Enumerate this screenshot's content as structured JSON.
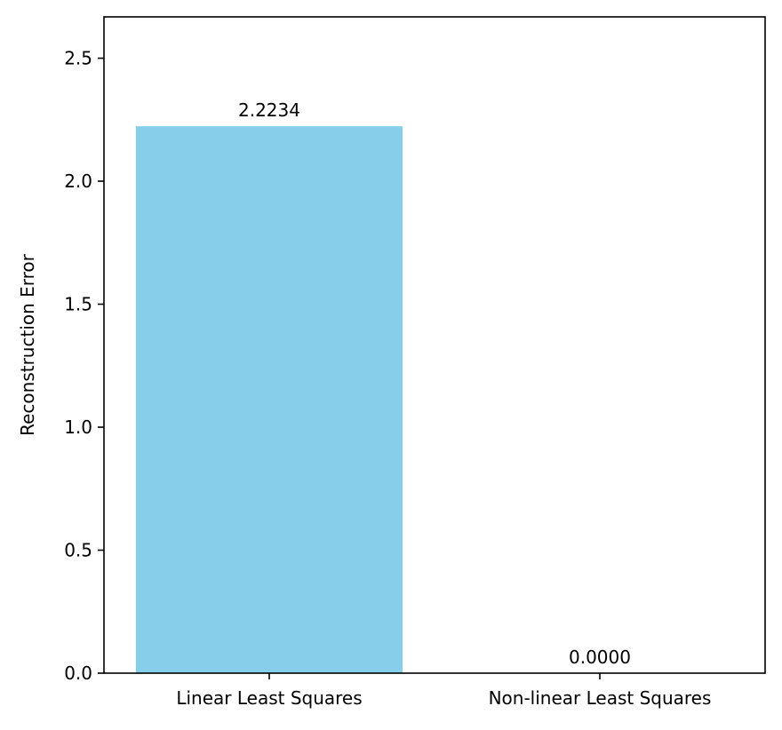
{
  "chart_data": {
    "type": "bar",
    "title": "",
    "xlabel": "",
    "ylabel": "Reconstruction Error",
    "categories": [
      "Linear Least Squares",
      "Non-linear Least Squares"
    ],
    "values": [
      2.2234,
      0.0
    ],
    "value_labels": [
      "2.2234",
      "0.0000"
    ],
    "ylim": [
      0,
      2.668
    ],
    "yticks": [
      0.0,
      0.5,
      1.0,
      1.5,
      2.0,
      2.5
    ],
    "ytick_labels": [
      "0.0",
      "0.5",
      "1.0",
      "1.5",
      "2.0",
      "2.5"
    ],
    "grid": false,
    "legend": false,
    "colors": {
      "bar": "#87ceeb",
      "axis": "#000000",
      "text": "#000000"
    }
  }
}
